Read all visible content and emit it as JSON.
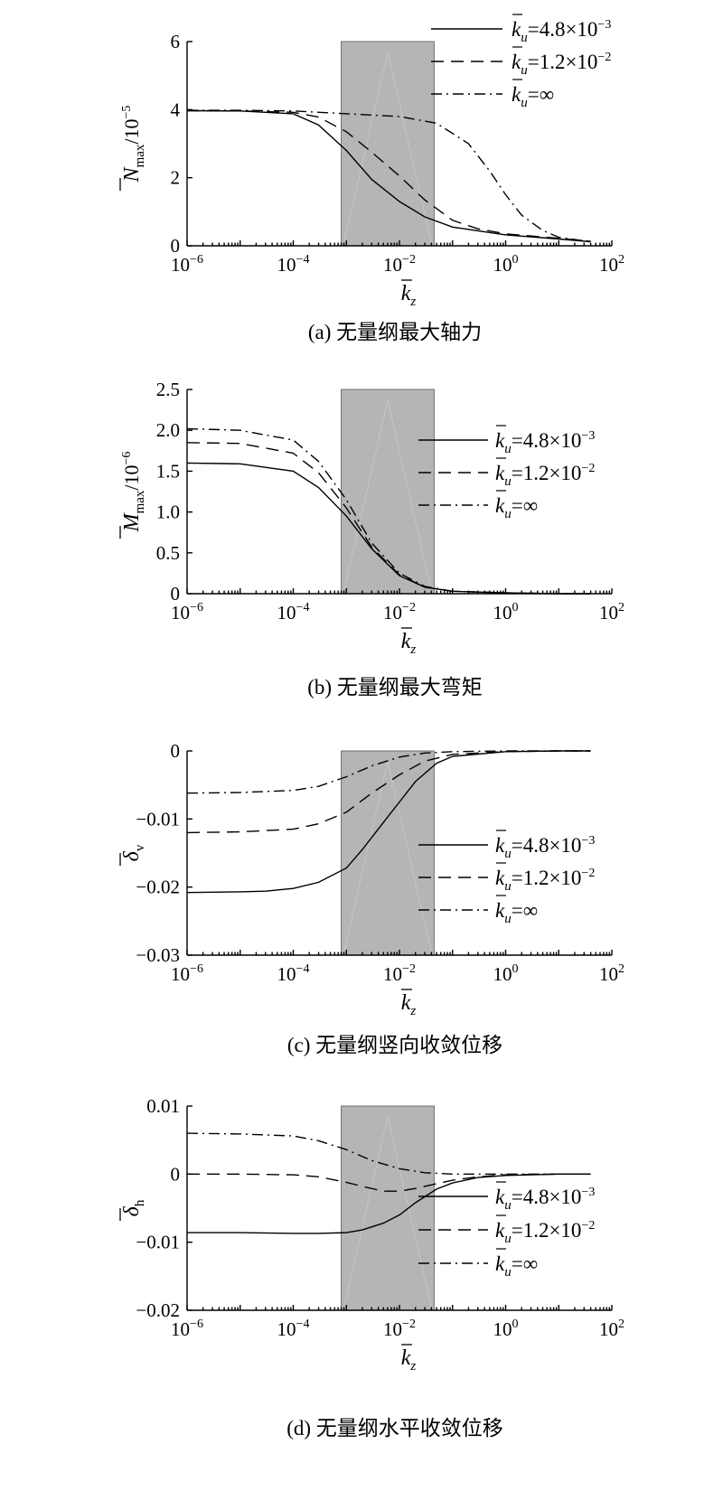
{
  "chart_data": [
    {
      "type": "line",
      "caption": "(a) 无量纲最大轴力",
      "x_scale": "log",
      "xlim": [
        1e-06,
        100
      ],
      "xticks": [
        {
          "value": 1e-06,
          "mantissa": "10",
          "exp": "−6"
        },
        {
          "value": 0.0001,
          "mantissa": "10",
          "exp": "−4"
        },
        {
          "value": 0.01,
          "mantissa": "10",
          "exp": "−2"
        },
        {
          "value": 1,
          "mantissa": "10",
          "exp": "0"
        },
        {
          "value": 100,
          "mantissa": "10",
          "exp": "2"
        }
      ],
      "xlabel": {
        "main": "k",
        "sub": "z"
      },
      "ylim": [
        0,
        6
      ],
      "yticks": [
        "0",
        "2",
        "4",
        "6"
      ],
      "ylabel": {
        "main": "N",
        "sub": "max",
        "suffix": "/10",
        "sup": "−5"
      },
      "shaded_range": [
        0.0008,
        0.045
      ],
      "legend_position": "top-right",
      "series": [
        {
          "name": "k_u=4.8×10⁻³",
          "legend": {
            "pre": "k",
            "sub": "u",
            "text": "=4.8×10",
            "sup": "−3"
          },
          "style": "solid",
          "x": [
            1e-06,
            1e-05,
            0.0001,
            0.0003,
            0.001,
            0.003,
            0.01,
            0.03,
            0.1,
            1,
            10,
            40
          ],
          "y": [
            3.97,
            3.96,
            3.88,
            3.55,
            2.8,
            1.95,
            1.3,
            0.85,
            0.55,
            0.32,
            0.2,
            0.12
          ]
        },
        {
          "name": "k_u=1.2×10⁻²",
          "legend": {
            "pre": "k",
            "sub": "u",
            "text": "=1.2×10",
            "sup": "−2"
          },
          "style": "dashed",
          "x": [
            1e-06,
            1e-05,
            0.0001,
            0.0003,
            0.001,
            0.003,
            0.01,
            0.03,
            0.1,
            0.3,
            1,
            10,
            40
          ],
          "y": [
            3.97,
            3.96,
            3.92,
            3.78,
            3.35,
            2.75,
            2.05,
            1.35,
            0.75,
            0.5,
            0.35,
            0.22,
            0.13
          ]
        },
        {
          "name": "k_u=∞",
          "legend": {
            "pre": "k",
            "sub": "u",
            "text": "=∞",
            "sup": ""
          },
          "style": "dashdot",
          "x": [
            1e-06,
            1e-05,
            0.0001,
            0.001,
            0.01,
            0.05,
            0.2,
            0.5,
            1,
            2,
            5,
            10,
            40
          ],
          "y": [
            3.98,
            3.98,
            3.96,
            3.88,
            3.8,
            3.6,
            3.0,
            2.2,
            1.5,
            0.9,
            0.45,
            0.25,
            0.12
          ]
        }
      ]
    },
    {
      "type": "line",
      "caption": "(b) 无量纲最大弯矩",
      "x_scale": "log",
      "xlim": [
        1e-06,
        100
      ],
      "xticks": [
        {
          "value": 1e-06,
          "mantissa": "10",
          "exp": "−6"
        },
        {
          "value": 0.0001,
          "mantissa": "10",
          "exp": "−4"
        },
        {
          "value": 0.01,
          "mantissa": "10",
          "exp": "−2"
        },
        {
          "value": 1,
          "mantissa": "10",
          "exp": "0"
        },
        {
          "value": 100,
          "mantissa": "10",
          "exp": "2"
        }
      ],
      "xlabel": {
        "main": "k",
        "sub": "z"
      },
      "ylim": [
        0,
        2.5
      ],
      "yticks": [
        "0",
        "0.5",
        "1.0",
        "1.5",
        "2.0",
        "2.5"
      ],
      "ylabel": {
        "main": "M",
        "sub": "max",
        "suffix": "/10",
        "sup": "−6"
      },
      "shaded_range": [
        0.0008,
        0.045
      ],
      "legend_position": "right",
      "series": [
        {
          "name": "k_u=4.8×10⁻³",
          "legend": {
            "pre": "k",
            "sub": "u",
            "text": "=4.8×10",
            "sup": "−3"
          },
          "style": "solid",
          "x": [
            1e-06,
            1e-05,
            0.0001,
            0.0003,
            0.001,
            0.003,
            0.01,
            0.03,
            0.1,
            1,
            10,
            40
          ],
          "y": [
            1.6,
            1.59,
            1.5,
            1.3,
            0.95,
            0.55,
            0.22,
            0.08,
            0.03,
            0.01,
            0.0,
            0.0
          ]
        },
        {
          "name": "k_u=1.2×10⁻²",
          "legend": {
            "pre": "k",
            "sub": "u",
            "text": "=1.2×10",
            "sup": "−2"
          },
          "style": "dashed",
          "x": [
            1e-06,
            1e-05,
            0.0001,
            0.0003,
            0.001,
            0.003,
            0.01,
            0.03,
            0.1,
            1,
            10,
            40
          ],
          "y": [
            1.85,
            1.84,
            1.72,
            1.48,
            1.05,
            0.57,
            0.23,
            0.08,
            0.03,
            0.01,
            0.0,
            0.0
          ]
        },
        {
          "name": "k_u=∞",
          "legend": {
            "pre": "k",
            "sub": "u",
            "text": "=∞",
            "sup": ""
          },
          "style": "dashdot",
          "x": [
            1e-06,
            1e-05,
            0.0001,
            0.0003,
            0.001,
            0.003,
            0.01,
            0.03,
            0.1,
            1,
            10,
            40
          ],
          "y": [
            2.02,
            2.0,
            1.88,
            1.62,
            1.15,
            0.62,
            0.25,
            0.09,
            0.03,
            0.01,
            0.0,
            0.0
          ]
        }
      ]
    },
    {
      "type": "line",
      "caption": "(c) 无量纲竖向收敛位移",
      "x_scale": "log",
      "xlim": [
        1e-06,
        100
      ],
      "xticks": [
        {
          "value": 1e-06,
          "mantissa": "10",
          "exp": "−6"
        },
        {
          "value": 0.0001,
          "mantissa": "10",
          "exp": "−4"
        },
        {
          "value": 0.01,
          "mantissa": "10",
          "exp": "−2"
        },
        {
          "value": 1,
          "mantissa": "10",
          "exp": "0"
        },
        {
          "value": 100,
          "mantissa": "10",
          "exp": "2"
        }
      ],
      "xlabel": {
        "main": "k",
        "sub": "z"
      },
      "ylim": [
        -0.03,
        0
      ],
      "yticks": [
        "−0.03",
        "−0.02",
        "−0.01",
        "0"
      ],
      "ylabel": {
        "main": "δ",
        "sub": "v",
        "suffix": "",
        "sup": ""
      },
      "shaded_range": [
        0.0008,
        0.045
      ],
      "legend_position": "right",
      "series": [
        {
          "name": "k_u=4.8×10⁻³",
          "legend": {
            "pre": "k",
            "sub": "u",
            "text": "=4.8×10",
            "sup": "−3"
          },
          "style": "solid",
          "x": [
            1e-06,
            1e-05,
            3e-05,
            0.0001,
            0.0003,
            0.001,
            0.002,
            0.005,
            0.01,
            0.02,
            0.05,
            0.1,
            1,
            10,
            40
          ],
          "y": [
            -0.0208,
            -0.0207,
            -0.0206,
            -0.0202,
            -0.0193,
            -0.0172,
            -0.0145,
            -0.0105,
            -0.0075,
            -0.0045,
            -0.0018,
            -0.0008,
            -0.0001,
            0.0,
            0.0
          ]
        },
        {
          "name": "k_u=1.2×10⁻²",
          "legend": {
            "pre": "k",
            "sub": "u",
            "text": "=1.2×10",
            "sup": "−2"
          },
          "style": "dashed",
          "x": [
            1e-06,
            1e-05,
            0.0001,
            0.0003,
            0.001,
            0.003,
            0.01,
            0.03,
            0.1,
            1,
            10,
            40
          ],
          "y": [
            -0.012,
            -0.0119,
            -0.0115,
            -0.0107,
            -0.009,
            -0.0062,
            -0.0035,
            -0.0015,
            -0.0005,
            -0.0001,
            0.0,
            0.0
          ]
        },
        {
          "name": "k_u=∞",
          "legend": {
            "pre": "k",
            "sub": "u",
            "text": "=∞",
            "sup": ""
          },
          "style": "dashdot",
          "x": [
            1e-06,
            1e-05,
            0.0001,
            0.0003,
            0.001,
            0.003,
            0.01,
            0.03,
            0.1,
            1,
            10,
            40
          ],
          "y": [
            -0.0062,
            -0.0061,
            -0.0058,
            -0.0052,
            -0.0038,
            -0.0022,
            -0.0009,
            -0.0003,
            -0.0001,
            0.0,
            0.0,
            0.0
          ]
        }
      ]
    },
    {
      "type": "line",
      "caption": "(d) 无量纲水平收敛位移",
      "x_scale": "log",
      "xlim": [
        1e-06,
        100
      ],
      "xticks": [
        {
          "value": 1e-06,
          "mantissa": "10",
          "exp": "−6"
        },
        {
          "value": 0.0001,
          "mantissa": "10",
          "exp": "−4"
        },
        {
          "value": 0.01,
          "mantissa": "10",
          "exp": "−2"
        },
        {
          "value": 1,
          "mantissa": "10",
          "exp": "0"
        },
        {
          "value": 100,
          "mantissa": "10",
          "exp": "2"
        }
      ],
      "xlabel": {
        "main": "k",
        "sub": "z"
      },
      "ylim": [
        -0.02,
        0.01
      ],
      "yticks": [
        "−0.02",
        "−0.01",
        "0",
        "0.01"
      ],
      "ylabel": {
        "main": "δ",
        "sub": "h",
        "suffix": "",
        "sup": ""
      },
      "shaded_range": [
        0.0008,
        0.045
      ],
      "legend_position": "right",
      "series": [
        {
          "name": "k_u=4.8×10⁻³",
          "legend": {
            "pre": "k",
            "sub": "u",
            "text": "=4.8×10",
            "sup": "−3"
          },
          "style": "solid",
          "x": [
            1e-06,
            1e-05,
            0.0001,
            0.0003,
            0.001,
            0.002,
            0.005,
            0.01,
            0.02,
            0.05,
            0.1,
            0.3,
            1,
            10,
            40
          ],
          "y": [
            -0.0086,
            -0.0086,
            -0.0087,
            -0.0087,
            -0.0086,
            -0.0082,
            -0.0072,
            -0.006,
            -0.0042,
            -0.0022,
            -0.0013,
            -0.0005,
            -0.0002,
            0.0,
            0.0
          ]
        },
        {
          "name": "k_u=1.2×10⁻²",
          "legend": {
            "pre": "k",
            "sub": "u",
            "text": "=1.2×10",
            "sup": "−2"
          },
          "style": "dashed",
          "x": [
            1e-06,
            1e-05,
            0.0001,
            0.0003,
            0.001,
            0.002,
            0.005,
            0.01,
            0.02,
            0.05,
            0.1,
            0.3,
            1,
            10,
            40
          ],
          "y": [
            0.0,
            0.0,
            -0.0001,
            -0.0004,
            -0.0012,
            -0.0018,
            -0.0025,
            -0.0025,
            -0.0021,
            -0.0014,
            -0.0009,
            -0.0004,
            -0.0001,
            0.0,
            0.0
          ]
        },
        {
          "name": "k_u=∞",
          "legend": {
            "pre": "k",
            "sub": "u",
            "text": "=∞",
            "sup": ""
          },
          "style": "dashdot",
          "x": [
            1e-06,
            1e-05,
            0.0001,
            0.0003,
            0.001,
            0.003,
            0.01,
            0.03,
            0.1,
            1,
            10,
            40
          ],
          "y": [
            0.006,
            0.0059,
            0.0056,
            0.0049,
            0.0036,
            0.002,
            0.0008,
            0.0002,
            0.0,
            0.0,
            0.0,
            0.0
          ]
        }
      ]
    }
  ]
}
